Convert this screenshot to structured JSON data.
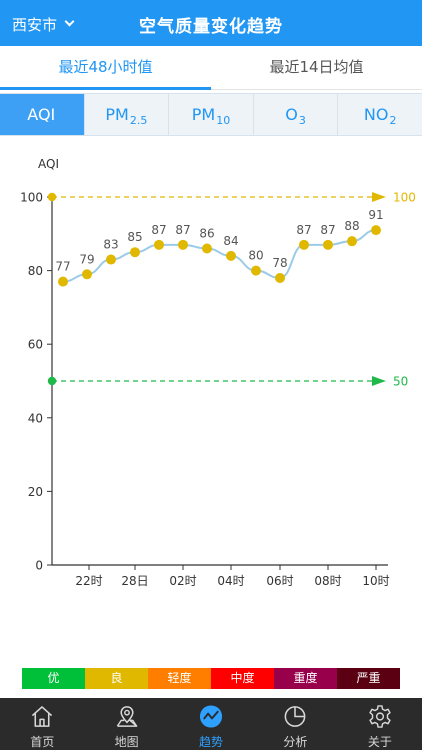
{
  "header": {
    "city": "西安市",
    "title": "空气质量变化趋势"
  },
  "period_tabs": [
    {
      "label": "最近48小时值",
      "active": true
    },
    {
      "label": "最近14日均值",
      "active": false
    }
  ],
  "pollutant_tabs": [
    {
      "base": "AQI",
      "sub": "",
      "active": true
    },
    {
      "base": "PM",
      "sub": "2.5",
      "active": false
    },
    {
      "base": "PM",
      "sub": "10",
      "active": false
    },
    {
      "base": "O",
      "sub": "3",
      "active": false
    },
    {
      "base": "NO",
      "sub": "2",
      "active": false
    }
  ],
  "chart_data": {
    "type": "line",
    "ylabel": "AQI",
    "ylim": [
      0,
      100
    ],
    "yticks": [
      "0",
      "20",
      "40",
      "60",
      "80",
      "100"
    ],
    "xticks": [
      "22时",
      "28日",
      "02时",
      "04时",
      "06时",
      "08时",
      "10时"
    ],
    "series": [
      {
        "values": [
          77,
          79,
          83,
          85,
          87,
          87,
          86,
          84,
          80,
          78,
          87,
          87,
          88,
          91
        ],
        "labels": [
          "77",
          "79",
          "83",
          "85",
          "87",
          "87",
          "86",
          "84",
          "80",
          "78",
          "87",
          "87",
          "88",
          "91"
        ],
        "color": "#e0b800",
        "line_color": "#9ccbe8"
      }
    ],
    "reference_lines": [
      {
        "value": 100,
        "label": "100",
        "color": "#e0b800"
      },
      {
        "value": 50,
        "label": "50",
        "color": "#1fb94a"
      }
    ],
    "grid": false
  },
  "legend": [
    {
      "label": "优",
      "color": "#00c03a"
    },
    {
      "label": "良",
      "color": "#e0b800"
    },
    {
      "label": "轻度",
      "color": "#ff7e00"
    },
    {
      "label": "中度",
      "color": "#ff0000"
    },
    {
      "label": "重度",
      "color": "#99004c"
    },
    {
      "label": "严重",
      "color": "#5a0012"
    }
  ],
  "nav": [
    {
      "label": "首页",
      "icon": "home-icon",
      "active": false
    },
    {
      "label": "地图",
      "icon": "map-icon",
      "active": false
    },
    {
      "label": "趋势",
      "icon": "trend-icon",
      "active": true
    },
    {
      "label": "分析",
      "icon": "pie-chart-icon",
      "active": false
    },
    {
      "label": "关于",
      "icon": "gear-icon",
      "active": false
    }
  ],
  "colors": {
    "primary": "#2196f3",
    "nav_bg": "#2b2b2b",
    "nav_active": "#2ea0ff"
  }
}
